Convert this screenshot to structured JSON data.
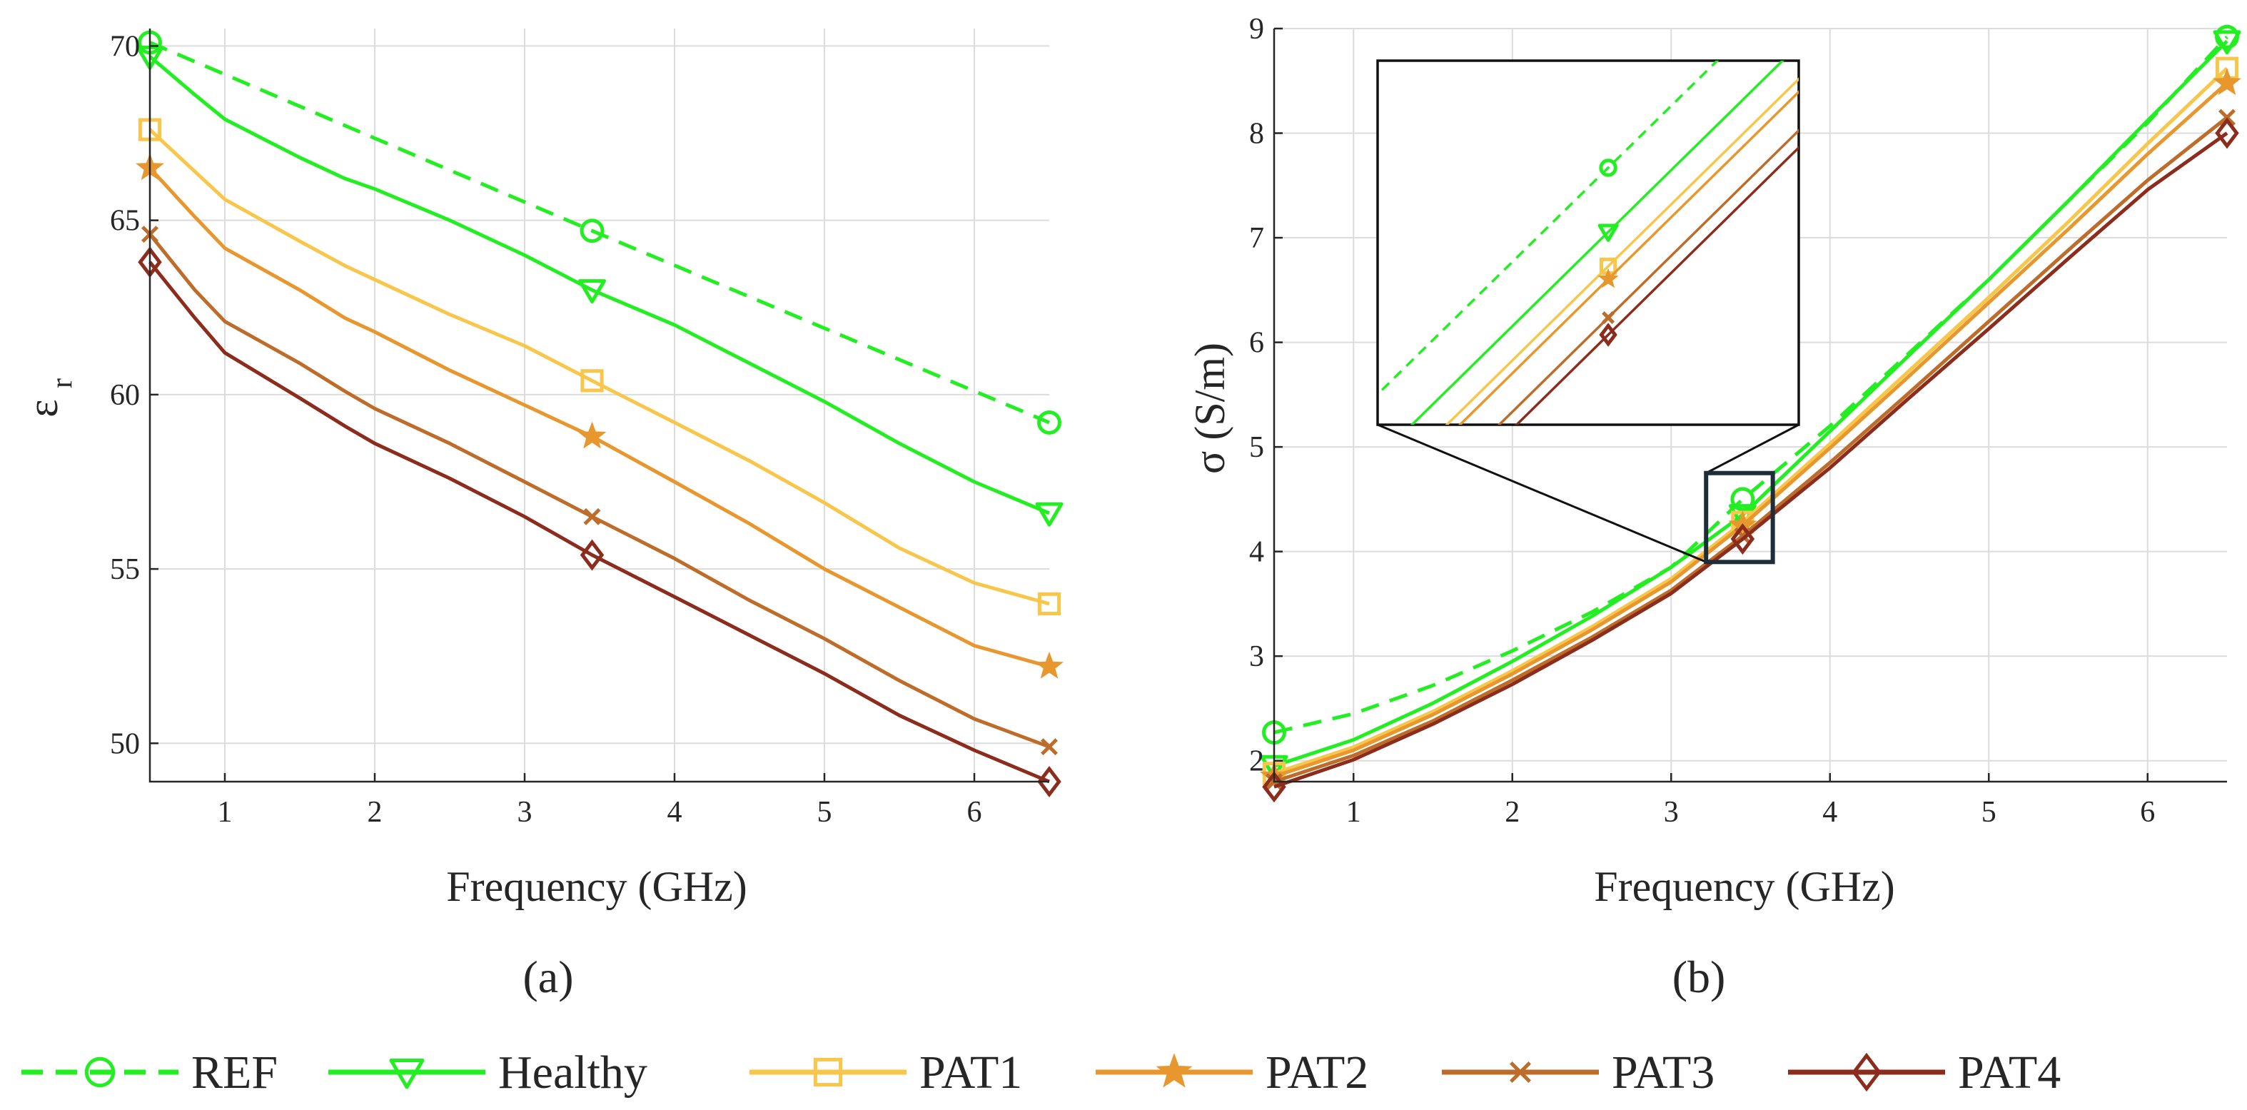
{
  "chart_data": [
    {
      "type": "line",
      "caption": "(a)",
      "xlabel": "Frequency (GHz)",
      "ylabel_main": "ε",
      "ylabel_sub": "r",
      "xlim": [
        0.5,
        6.5
      ],
      "ylim": [
        48.9,
        70.5
      ],
      "xticks": [
        1,
        2,
        3,
        4,
        5,
        6
      ],
      "yticks": [
        50,
        55,
        60,
        65,
        70
      ],
      "grid": true,
      "marker_x": [
        0.5,
        3.45,
        6.5
      ],
      "series": [
        {
          "name": "REF",
          "x": [
            0.5,
            3.45,
            6.5
          ],
          "values": [
            70.1,
            64.7,
            59.2
          ]
        },
        {
          "name": "Healthy",
          "x": [
            0.5,
            0.8,
            1.0,
            1.5,
            1.8,
            2.0,
            2.5,
            3.0,
            3.45,
            4.0,
            4.5,
            5.0,
            5.5,
            6.0,
            6.5
          ],
          "values": [
            69.7,
            68.6,
            67.9,
            66.8,
            66.2,
            65.9,
            65.0,
            64.0,
            63.0,
            62.0,
            60.9,
            59.8,
            58.6,
            57.5,
            56.6
          ]
        },
        {
          "name": "PAT1",
          "x": [
            0.5,
            0.8,
            1.0,
            1.5,
            1.8,
            2.0,
            2.5,
            3.0,
            3.45,
            4.0,
            4.5,
            5.0,
            5.5,
            6.0,
            6.5
          ],
          "values": [
            67.6,
            66.4,
            65.6,
            64.4,
            63.7,
            63.3,
            62.3,
            61.4,
            60.4,
            59.2,
            58.1,
            56.9,
            55.6,
            54.6,
            54.0
          ]
        },
        {
          "name": "PAT2",
          "x": [
            0.5,
            0.8,
            1.0,
            1.5,
            1.8,
            2.0,
            2.5,
            3.0,
            3.45,
            4.0,
            4.5,
            5.0,
            5.5,
            6.0,
            6.5
          ],
          "values": [
            66.5,
            65.1,
            64.2,
            63.0,
            62.2,
            61.8,
            60.7,
            59.7,
            58.8,
            57.5,
            56.3,
            55.0,
            53.9,
            52.8,
            52.2
          ]
        },
        {
          "name": "PAT3",
          "x": [
            0.5,
            0.8,
            1.0,
            1.5,
            1.8,
            2.0,
            2.5,
            3.0,
            3.45,
            4.0,
            4.5,
            5.0,
            5.5,
            6.0,
            6.5
          ],
          "values": [
            64.6,
            63.0,
            62.1,
            60.9,
            60.1,
            59.6,
            58.6,
            57.5,
            56.5,
            55.3,
            54.1,
            53.0,
            51.8,
            50.7,
            49.9
          ]
        },
        {
          "name": "PAT4",
          "x": [
            0.5,
            0.8,
            1.0,
            1.5,
            1.8,
            2.0,
            2.5,
            3.0,
            3.45,
            4.0,
            4.5,
            5.0,
            5.5,
            6.0,
            6.5
          ],
          "values": [
            63.8,
            62.2,
            61.2,
            59.9,
            59.1,
            58.6,
            57.6,
            56.5,
            55.4,
            54.2,
            53.1,
            52.0,
            50.8,
            49.8,
            48.9
          ]
        }
      ]
    },
    {
      "type": "line",
      "caption": "(b)",
      "xlabel": "Frequency (GHz)",
      "ylabel": "σ (S/m)",
      "xlim": [
        0.5,
        6.5
      ],
      "ylim": [
        1.8,
        9.0
      ],
      "xticks": [
        1,
        2,
        3,
        4,
        5,
        6
      ],
      "yticks": [
        2,
        3,
        4,
        5,
        6,
        7,
        8,
        9
      ],
      "grid": true,
      "marker_x": [
        0.5,
        3.45,
        6.5
      ],
      "series": [
        {
          "name": "REF",
          "x": [
            0.5,
            1.0,
            1.5,
            2.0,
            2.5,
            3.0,
            3.45,
            4.0,
            4.5,
            5.0,
            5.5,
            6.0,
            6.5
          ],
          "values": [
            2.27,
            2.45,
            2.72,
            3.05,
            3.42,
            3.85,
            4.5,
            5.2,
            5.9,
            6.6,
            7.35,
            8.1,
            8.92
          ]
        },
        {
          "name": "Healthy",
          "x": [
            0.5,
            1.0,
            1.5,
            2.0,
            2.5,
            3.0,
            3.45,
            4.0,
            4.5,
            5.0,
            5.5,
            6.0,
            6.5
          ],
          "values": [
            1.95,
            2.2,
            2.55,
            2.95,
            3.38,
            3.85,
            4.35,
            5.15,
            5.88,
            6.6,
            7.35,
            8.12,
            8.88
          ]
        },
        {
          "name": "PAT1",
          "x": [
            0.5,
            1.0,
            1.5,
            2.0,
            2.5,
            3.0,
            3.45,
            4.0,
            4.5,
            5.0,
            5.5,
            6.0,
            6.5
          ],
          "values": [
            1.88,
            2.13,
            2.47,
            2.86,
            3.28,
            3.74,
            4.28,
            5.03,
            5.73,
            6.43,
            7.15,
            7.9,
            8.62
          ]
        },
        {
          "name": "PAT2",
          "x": [
            0.5,
            1.0,
            1.5,
            2.0,
            2.5,
            3.0,
            3.45,
            4.0,
            4.5,
            5.0,
            5.5,
            6.0,
            6.5
          ],
          "values": [
            1.85,
            2.1,
            2.44,
            2.83,
            3.25,
            3.71,
            4.25,
            4.99,
            5.68,
            6.38,
            7.08,
            7.8,
            8.48
          ]
        },
        {
          "name": "PAT3",
          "x": [
            0.5,
            1.0,
            1.5,
            2.0,
            2.5,
            3.0,
            3.45,
            4.0,
            4.5,
            5.0,
            5.5,
            6.0,
            6.5
          ],
          "values": [
            1.8,
            2.05,
            2.38,
            2.77,
            3.18,
            3.63,
            4.15,
            4.85,
            5.52,
            6.2,
            6.88,
            7.55,
            8.15
          ]
        },
        {
          "name": "PAT4",
          "x": [
            0.5,
            1.0,
            1.5,
            2.0,
            2.5,
            3.0,
            3.45,
            4.0,
            4.5,
            5.0,
            5.5,
            6.0,
            6.5
          ],
          "values": [
            1.75,
            2.01,
            2.35,
            2.73,
            3.15,
            3.6,
            4.12,
            4.8,
            5.47,
            6.13,
            6.8,
            7.46,
            8.0
          ]
        }
      ]
    }
  ],
  "legend": [
    {
      "name": "REF",
      "color": "#22ee22",
      "dashed": true,
      "marker": "circle"
    },
    {
      "name": "Healthy",
      "color": "#22ee22",
      "dashed": false,
      "marker": "triangle-down"
    },
    {
      "name": "PAT1",
      "color": "#f7c64a",
      "dashed": false,
      "marker": "square"
    },
    {
      "name": "PAT2",
      "color": "#e8972e",
      "dashed": false,
      "marker": "star"
    },
    {
      "name": "PAT3",
      "color": "#bd6c2a",
      "dashed": false,
      "marker": "x"
    },
    {
      "name": "PAT4",
      "color": "#8c2c1c",
      "dashed": false,
      "marker": "diamond"
    }
  ]
}
